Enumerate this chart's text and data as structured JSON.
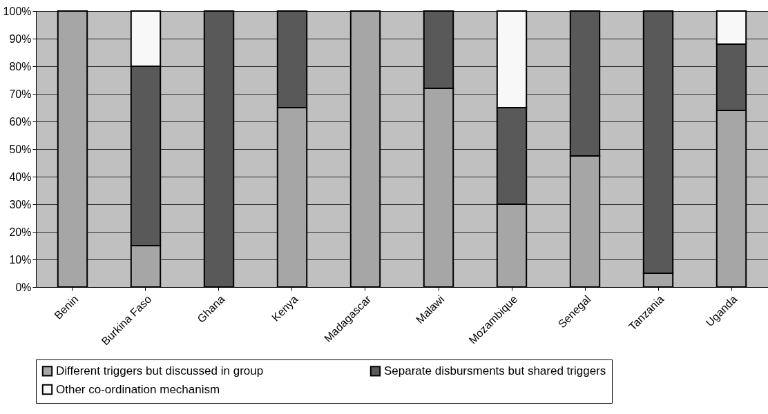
{
  "chart_data": {
    "type": "bar",
    "stacked": true,
    "categories": [
      "Benin",
      "Burkina Faso",
      "Ghana",
      "Kenya",
      "Madagascar",
      "Malawi",
      "Mozambique",
      "Senegal",
      "Tanzania",
      "Uganda"
    ],
    "series": [
      {
        "name": "Different triggers but discussed in group",
        "color": "#a6a6a6",
        "values": [
          100,
          15,
          0,
          65,
          100,
          72,
          30,
          47.5,
          5,
          64
        ]
      },
      {
        "name": "Separate disbursments but shared triggers",
        "color": "#595959",
        "values": [
          0,
          65,
          100,
          35,
          0,
          28,
          35,
          52.5,
          95,
          24
        ]
      },
      {
        "name": "Other co-ordination mechanism",
        "color": "#f8f8f8",
        "values": [
          0,
          20,
          0,
          0,
          0,
          0,
          35,
          0,
          0,
          12
        ]
      }
    ],
    "ylim": [
      0,
      100
    ],
    "yticks": [
      {
        "value": 0,
        "label": "0%"
      },
      {
        "value": 10,
        "label": "10%"
      },
      {
        "value": 20,
        "label": "20%"
      },
      {
        "value": 30,
        "label": "30%"
      },
      {
        "value": 40,
        "label": "40%"
      },
      {
        "value": 50,
        "label": "50%"
      },
      {
        "value": 60,
        "label": "60%"
      },
      {
        "value": 70,
        "label": "70%"
      },
      {
        "value": 80,
        "label": "80%"
      },
      {
        "value": 90,
        "label": "90%"
      },
      {
        "value": 100,
        "label": "100%"
      }
    ],
    "grid": "y",
    "legend": "bottom"
  }
}
